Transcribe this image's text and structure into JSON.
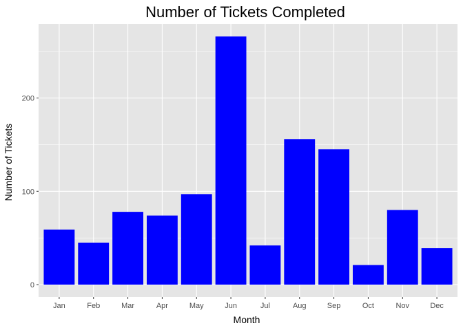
{
  "chart_data": {
    "type": "bar",
    "title": "Number of Tickets Completed",
    "xlabel": "Month",
    "ylabel": "Number of Tickets",
    "categories": [
      "Jan",
      "Feb",
      "Mar",
      "Apr",
      "May",
      "Jun",
      "Jul",
      "Aug",
      "Sep",
      "Oct",
      "Nov",
      "Dec"
    ],
    "values": [
      59,
      45,
      78,
      74,
      97,
      266,
      42,
      156,
      145,
      21,
      80,
      39
    ],
    "ylim": [
      -13.3,
      279.3
    ],
    "yticks": [
      0,
      100,
      200
    ],
    "grid": true,
    "legend": "none",
    "colors": {
      "bar": "#0000FF",
      "panel_background": "#E5E5E5",
      "grid_major": "#FFFFFF",
      "tick_text": "#4D4D4D",
      "tick_mark": "#333333"
    }
  }
}
